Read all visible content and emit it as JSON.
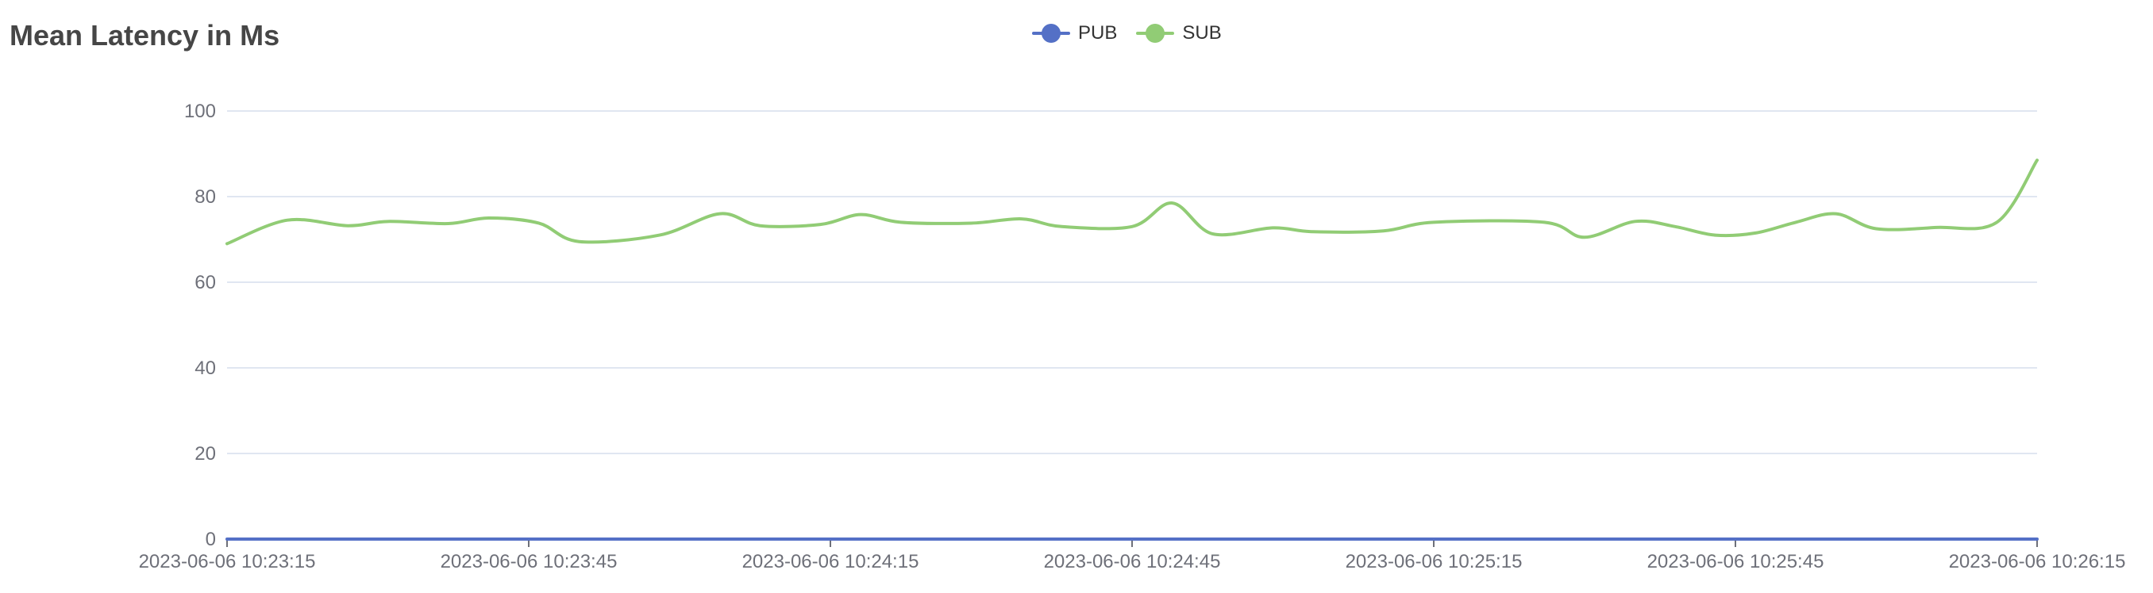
{
  "chart_data": {
    "type": "line",
    "title": "Mean Latency in Ms",
    "ylim": [
      0,
      100
    ],
    "y_ticks": [
      0,
      20,
      40,
      60,
      80,
      100
    ],
    "x_start": "2023-06-06 10:23:15",
    "x_end": "2023-06-06 10:26:15",
    "x_ticks": [
      "2023-06-06 10:23:15",
      "2023-06-06 10:23:45",
      "2023-06-06 10:24:15",
      "2023-06-06 10:24:45",
      "2023-06-06 10:25:15",
      "2023-06-06 10:25:45",
      "2023-06-06 10:26:15"
    ],
    "grid": "horizontal",
    "legend_position": "top-center",
    "series": [
      {
        "name": "PUB",
        "color": "#5470c6",
        "points": [
          [
            "2023-06-06 10:23:15",
            0
          ],
          [
            "2023-06-06 10:26:15",
            0
          ]
        ]
      },
      {
        "name": "SUB",
        "color": "#91cc75",
        "points": [
          [
            "2023-06-06 10:23:15",
            69
          ],
          [
            "2023-06-06 10:23:21",
            74.5
          ],
          [
            "2023-06-06 10:23:27",
            73.2
          ],
          [
            "2023-06-06 10:23:31",
            74.2
          ],
          [
            "2023-06-06 10:23:37",
            73.7
          ],
          [
            "2023-06-06 10:23:41",
            75
          ],
          [
            "2023-06-06 10:23:46",
            73.8
          ],
          [
            "2023-06-06 10:23:50",
            69.5
          ],
          [
            "2023-06-06 10:23:58",
            71
          ],
          [
            "2023-06-06 10:24:04",
            76
          ],
          [
            "2023-06-06 10:24:08",
            73.2
          ],
          [
            "2023-06-06 10:24:14",
            73.5
          ],
          [
            "2023-06-06 10:24:18",
            75.8
          ],
          [
            "2023-06-06 10:24:22",
            74
          ],
          [
            "2023-06-06 10:24:29",
            73.8
          ],
          [
            "2023-06-06 10:24:34",
            74.8
          ],
          [
            "2023-06-06 10:24:38",
            73
          ],
          [
            "2023-06-06 10:24:45",
            73
          ],
          [
            "2023-06-06 10:24:49",
            78.5
          ],
          [
            "2023-06-06 10:24:53",
            71.3
          ],
          [
            "2023-06-06 10:24:59",
            72.7
          ],
          [
            "2023-06-06 10:25:03",
            71.8
          ],
          [
            "2023-06-06 10:25:10",
            72
          ],
          [
            "2023-06-06 10:25:15",
            74
          ],
          [
            "2023-06-06 10:25:26",
            74
          ],
          [
            "2023-06-06 10:25:30",
            70.5
          ],
          [
            "2023-06-06 10:25:35",
            74.2
          ],
          [
            "2023-06-06 10:25:39",
            73
          ],
          [
            "2023-06-06 10:25:43",
            71
          ],
          [
            "2023-06-06 10:25:47",
            71.5
          ],
          [
            "2023-06-06 10:25:51",
            74
          ],
          [
            "2023-06-06 10:25:55",
            76
          ],
          [
            "2023-06-06 10:25:59",
            72.5
          ],
          [
            "2023-06-06 10:26:05",
            72.8
          ],
          [
            "2023-06-06 10:26:11",
            74
          ],
          [
            "2023-06-06 10:26:15",
            88.5
          ]
        ]
      }
    ]
  }
}
